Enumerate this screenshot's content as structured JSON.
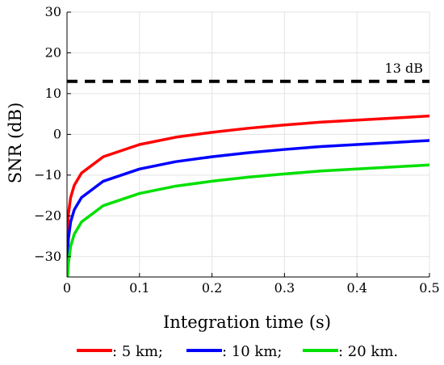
{
  "chart_data": {
    "type": "line",
    "xlabel": "Integration time (s)",
    "ylabel": "SNR (dB)",
    "xlim": [
      0,
      0.5
    ],
    "ylim": [
      -35,
      30
    ],
    "xticks": [
      0,
      0.1,
      0.2,
      0.3,
      0.4,
      0.5
    ],
    "xtick_labels": [
      "0",
      "0.1",
      "0.2",
      "0.3",
      "0.4",
      "0.5"
    ],
    "yticks": [
      30,
      20,
      10,
      0,
      -10,
      -20,
      -30
    ],
    "ytick_labels": [
      "30",
      "20",
      "10",
      "0",
      "−10",
      "−20",
      "−30"
    ],
    "grid": true,
    "legend_position": "bottom",
    "series": [
      {
        "name": ": 5 km;",
        "color": "#ff0000",
        "x": [
          0.0005,
          0.001,
          0.002,
          0.005,
          0.01,
          0.02,
          0.05,
          0.1,
          0.15,
          0.2,
          0.25,
          0.3,
          0.35,
          0.4,
          0.45,
          0.5
        ],
        "y": [
          -25.5,
          -22.5,
          -19.5,
          -15.5,
          -12.5,
          -9.5,
          -5.5,
          -2.5,
          -0.7,
          0.5,
          1.5,
          2.3,
          3.0,
          3.5,
          4.0,
          4.5
        ]
      },
      {
        "name": ": 10 km;",
        "color": "#0000ff",
        "x": [
          0.0005,
          0.001,
          0.002,
          0.005,
          0.01,
          0.02,
          0.05,
          0.1,
          0.15,
          0.2,
          0.25,
          0.3,
          0.35,
          0.4,
          0.45,
          0.5
        ],
        "y": [
          -31.5,
          -28.5,
          -25.5,
          -21.5,
          -18.5,
          -15.5,
          -11.5,
          -8.5,
          -6.7,
          -5.5,
          -4.5,
          -3.7,
          -3.0,
          -2.5,
          -2.0,
          -1.5
        ]
      },
      {
        "name": ": 20 km.",
        "color": "#00e000",
        "x": [
          0.0005,
          0.001,
          0.002,
          0.005,
          0.01,
          0.02,
          0.05,
          0.1,
          0.15,
          0.2,
          0.25,
          0.3,
          0.35,
          0.4,
          0.45,
          0.5
        ],
        "y": [
          -37.5,
          -34.5,
          -31.5,
          -27.5,
          -24.5,
          -21.5,
          -17.5,
          -14.5,
          -12.7,
          -11.5,
          -10.5,
          -9.7,
          -9.0,
          -8.5,
          -8.0,
          -7.5
        ]
      }
    ],
    "threshold": {
      "y": 13,
      "label": "13 dB",
      "color": "#000000"
    }
  }
}
